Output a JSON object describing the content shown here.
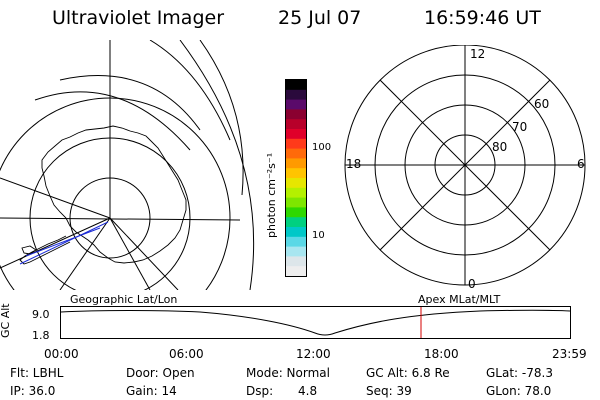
{
  "header": {
    "instrument": "Ultraviolet Imager",
    "date": "25 Jul 07",
    "time": "16:59:46 UT"
  },
  "colorbar": {
    "unit_label": "photon cm⁻²s⁻¹",
    "tick_labels": [
      "100",
      "10"
    ],
    "colors": [
      "#000000",
      "#2a0a3c",
      "#5a0a6a",
      "#8a0030",
      "#b8002a",
      "#e0002a",
      "#ff3a1a",
      "#ff6a0a",
      "#ff9a00",
      "#ffc400",
      "#e6e600",
      "#b4f000",
      "#7ee600",
      "#2ed800",
      "#00d080",
      "#00c8c8",
      "#5ad8e6",
      "#a8e6f0",
      "#dde6ea",
      "#eeeeee"
    ]
  },
  "polar_plot": {
    "mlt_labels": [
      "12",
      "18",
      "6",
      "0"
    ],
    "lat_labels": [
      "60",
      "70",
      "80"
    ]
  },
  "timeline": {
    "ylabel": "GC Alt",
    "y_ticks": [
      "9.0",
      "1.8"
    ],
    "left_caption": "Geographic Lat/Lon",
    "right_caption": "Apex MLat/MLT",
    "x_ticks": [
      "00:00",
      "06:00",
      "12:00",
      "18:00",
      "23:59"
    ],
    "marker_color": "#d40000"
  },
  "status": {
    "filter": "Flt: LBHL",
    "ip": "IP: 36.0",
    "door": "Door: Open",
    "gain": "Gain: 14",
    "mode": "Mode: Normal",
    "dsp_label": "Dsp:",
    "dsp_value": "4.8",
    "gc_alt": "GC Alt: 6.8 Re",
    "seq": "Seq: 39",
    "glat": "GLat: -78.3",
    "glon": "GLon: 78.0"
  }
}
